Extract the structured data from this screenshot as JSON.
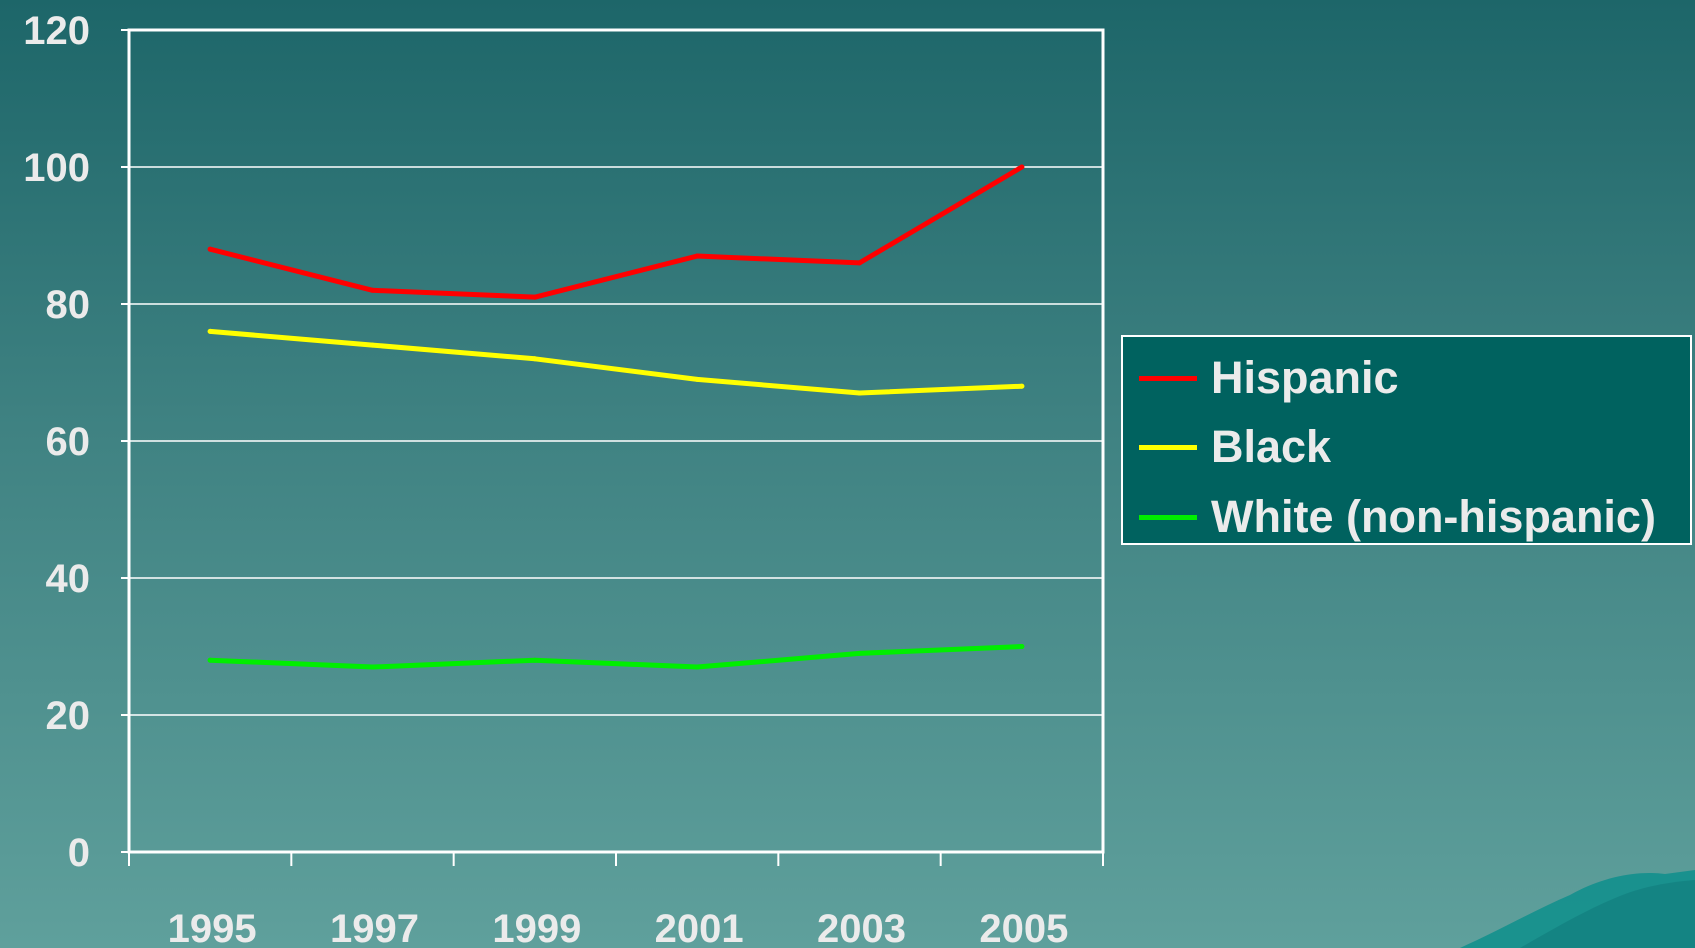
{
  "chart_data": {
    "type": "line",
    "title": "",
    "xlabel": "",
    "ylabel": "",
    "categories": [
      "1995",
      "1997",
      "1999",
      "2001",
      "2003",
      "2005"
    ],
    "ylim": [
      0,
      120
    ],
    "yticks": [
      "0",
      "20",
      "40",
      "60",
      "80",
      "100",
      "120"
    ],
    "grid": true,
    "legend_position": "right",
    "series": [
      {
        "name": "Hispanic",
        "color": "#ff0000",
        "values": [
          88,
          82,
          81,
          87,
          86,
          100
        ]
      },
      {
        "name": "Black",
        "color": "#ffff00",
        "values": [
          76,
          74,
          72,
          69,
          67,
          68
        ]
      },
      {
        "name": "White (non-hispanic)",
        "color": "#00ee00",
        "values": [
          28,
          27,
          28,
          27,
          29,
          30
        ]
      }
    ]
  },
  "colors": {
    "axis": "#ffffff",
    "gridline": "#ffffff",
    "text": "#ebebeb",
    "legend_background": "#00625f"
  }
}
